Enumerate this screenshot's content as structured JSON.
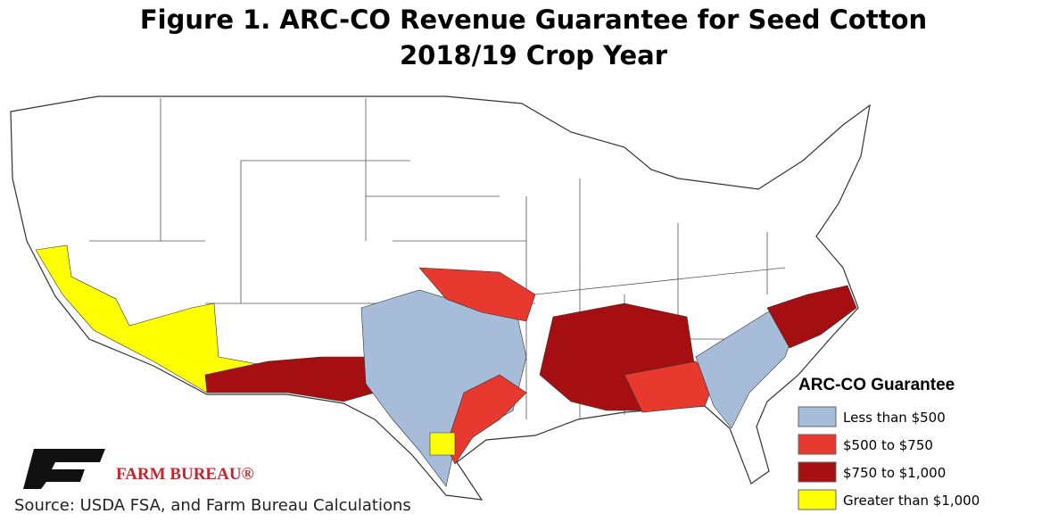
{
  "title": [
    "Figure 1. ARC-CO Revenue Guarantee for Seed Cotton",
    "2018/19 Crop Year"
  ],
  "legend": {
    "title": "ARC-CO Guarantee",
    "items": [
      {
        "label": "Less than $500",
        "color": "#a6bcd9"
      },
      {
        "label": "$500 to $750",
        "color": "#e8392e"
      },
      {
        "label": "$750 to $1,000",
        "color": "#a50f12"
      },
      {
        "label": "Greater than $1,000",
        "color": "#ffff00"
      }
    ]
  },
  "logo": "FARM BUREAU®",
  "source": "Source: USDA FSA, and Farm Bureau Calculations"
}
